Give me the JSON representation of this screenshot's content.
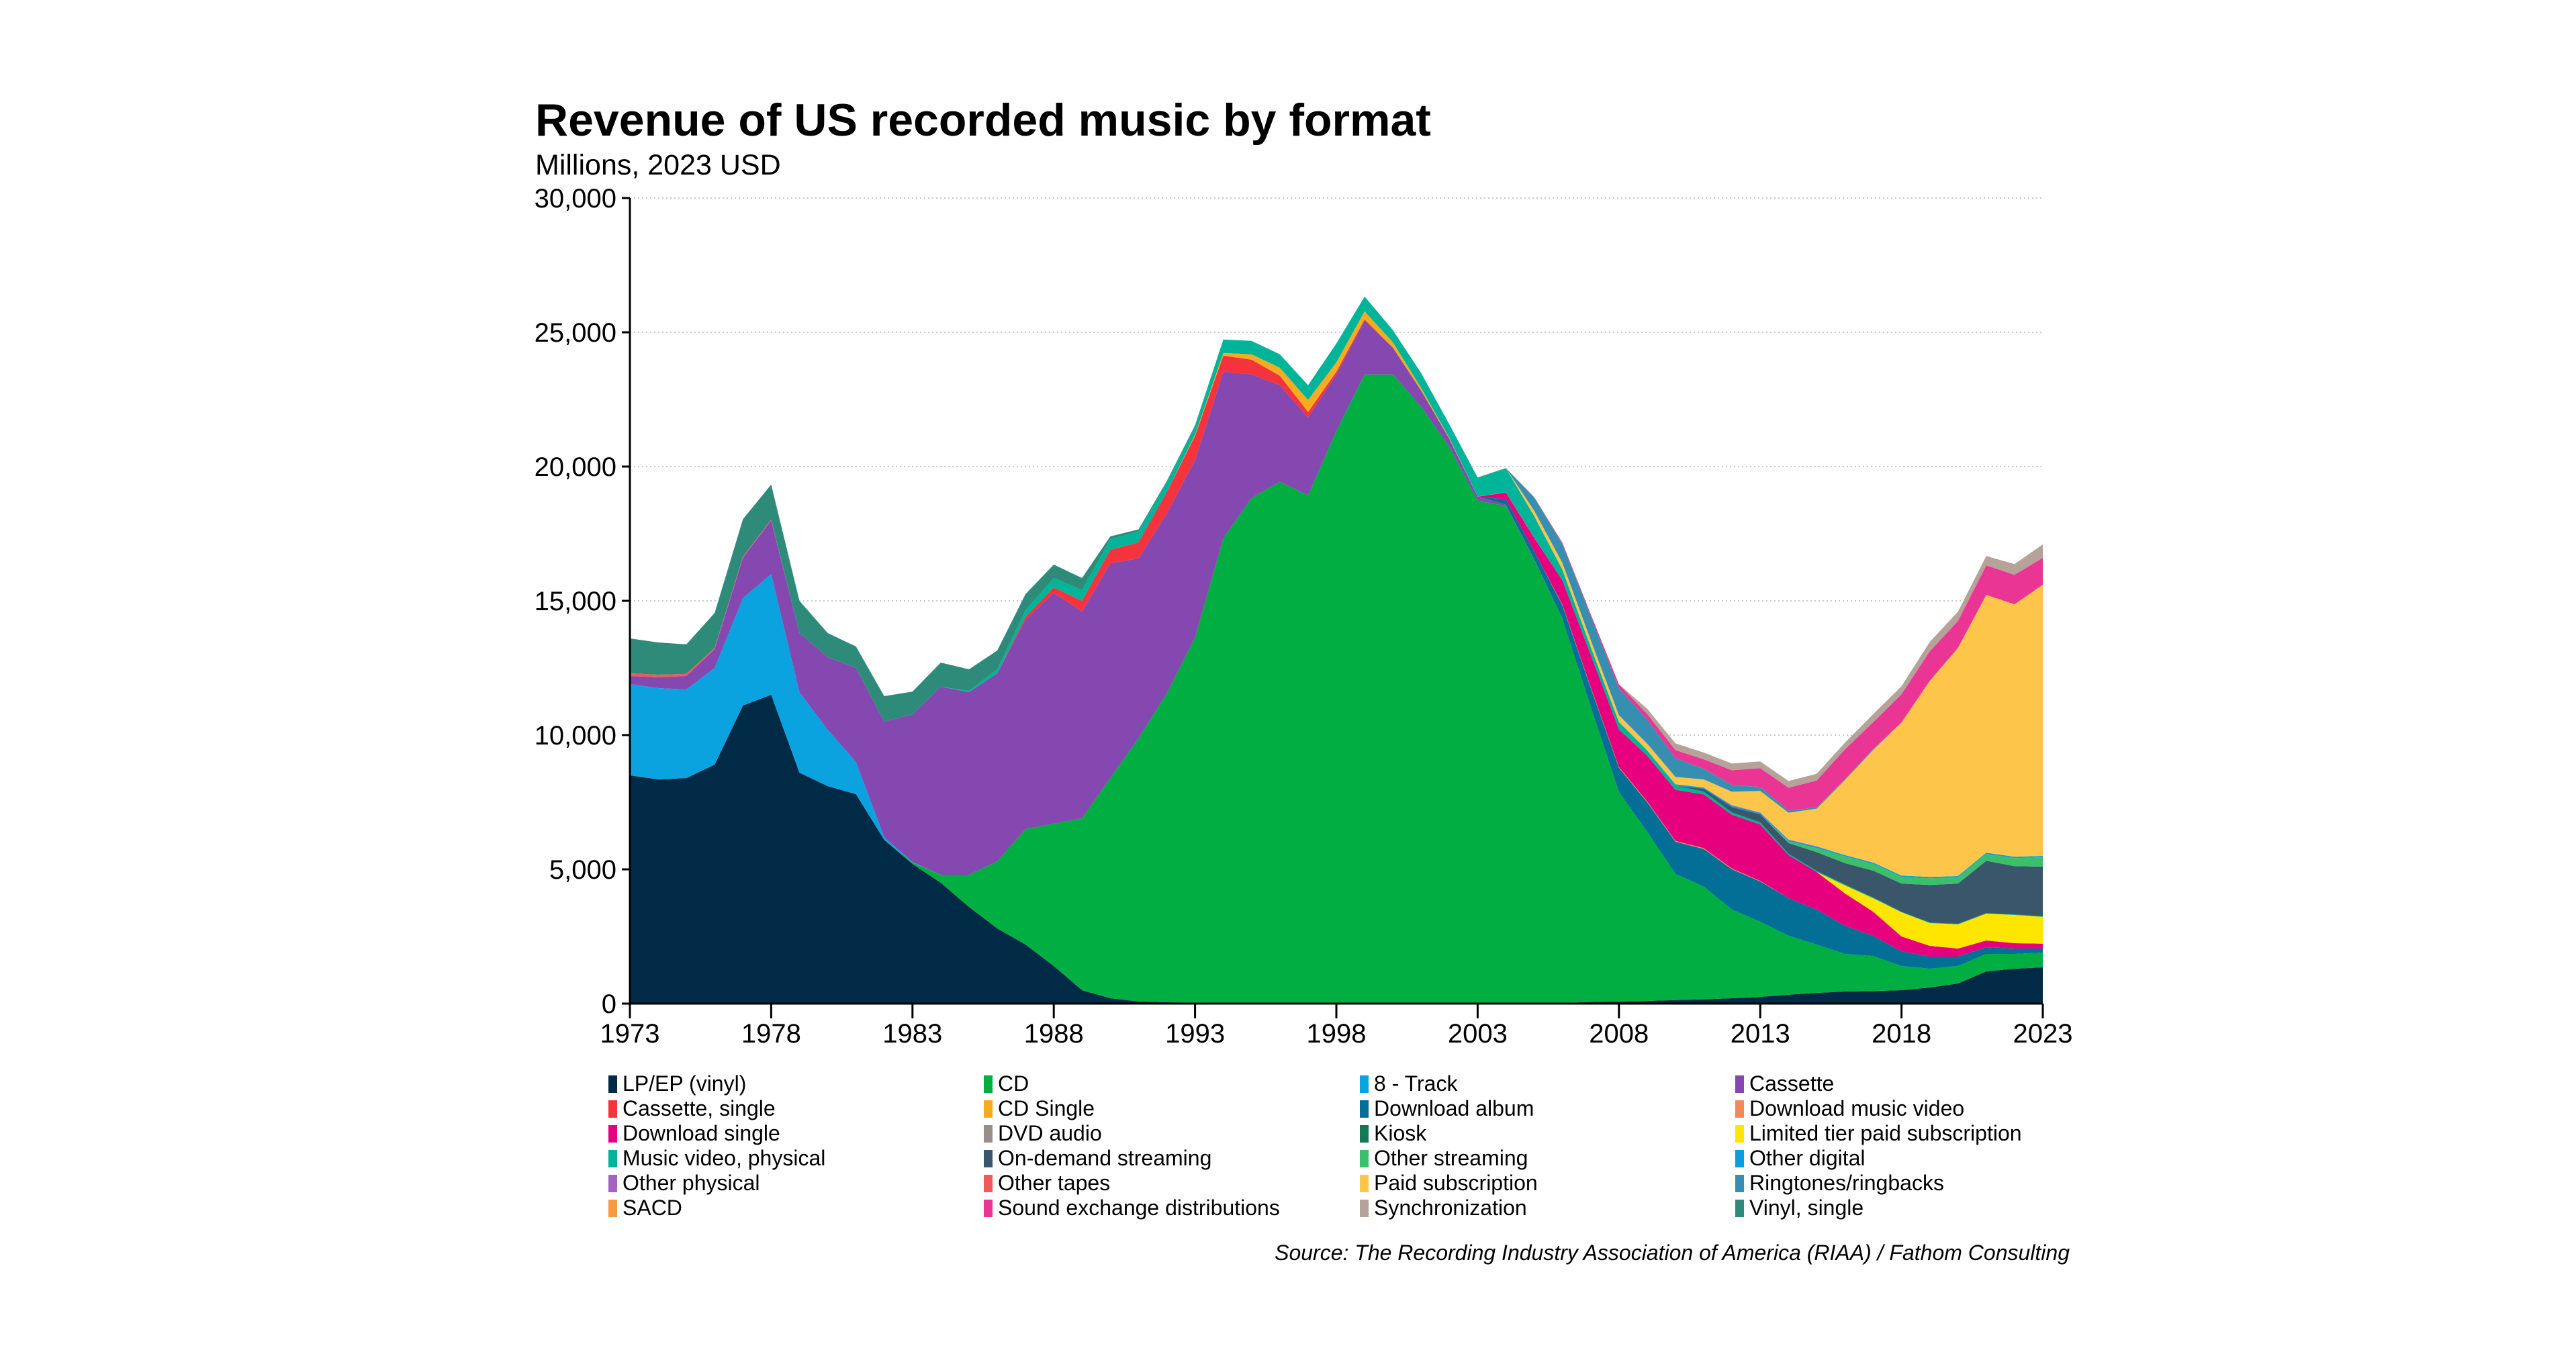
{
  "chart_data": {
    "type": "area",
    "stacked": true,
    "title": "Revenue of US recorded music by format",
    "subtitle": "Millions, 2023 USD",
    "source": "Source: The Recording Industry Association of America (RIAA) / Fathom Consulting",
    "xlim": [
      1973,
      2023
    ],
    "ylim": [
      0,
      30000
    ],
    "yticks": [
      "0",
      "5,000",
      "10,000",
      "15,000",
      "20,000",
      "25,000",
      "30,000"
    ],
    "xticks": [
      "1973",
      "1978",
      "1983",
      "1988",
      "1993",
      "1998",
      "2003",
      "2008",
      "2013",
      "2018",
      "2023"
    ],
    "grid": "horizontal dotted",
    "legend_position": "bottom",
    "series": [
      {
        "name": "LP/EP (vinyl)",
        "color": "#002a46",
        "values": {
          "1973": 8500,
          "1974": 8350,
          "1975": 8400,
          "1976": 8900,
          "1977": 11100,
          "1978": 11500,
          "1979": 8600,
          "1980": 8100,
          "1981": 7800,
          "1982": 6100,
          "1983": 5200,
          "1984": 4500,
          "1985": 3600,
          "1986": 2800,
          "1987": 2200,
          "1988": 1400,
          "1989": 500,
          "1990": 200,
          "1991": 80,
          "1992": 50,
          "1993": 40,
          "1994": 30,
          "1995": 30,
          "1996": 30,
          "1997": 30,
          "1998": 30,
          "1999": 30,
          "2000": 30,
          "2001": 30,
          "2002": 30,
          "2003": 30,
          "2004": 30,
          "2005": 30,
          "2006": 30,
          "2007": 60,
          "2008": 80,
          "2009": 100,
          "2010": 130,
          "2011": 160,
          "2012": 200,
          "2013": 250,
          "2014": 330,
          "2015": 400,
          "2016": 450,
          "2017": 470,
          "2018": 500,
          "2019": 600,
          "2020": 750,
          "2021": 1200,
          "2022": 1300,
          "2023": 1350
        }
      },
      {
        "name": "CD",
        "color": "#00ae42",
        "values": {
          "1983": 50,
          "1984": 300,
          "1985": 1200,
          "1986": 2500,
          "1987": 4300,
          "1988": 5300,
          "1989": 6400,
          "1990": 8200,
          "1991": 9800,
          "1992": 11500,
          "1993": 13600,
          "1994": 17300,
          "1995": 18800,
          "1996": 19400,
          "1997": 18900,
          "1998": 21300,
          "1999": 23400,
          "2000": 23400,
          "2001": 22200,
          "2002": 20700,
          "2003": 18700,
          "2004": 18500,
          "2005": 16500,
          "2006": 14300,
          "2007": 11000,
          "2008": 7800,
          "2009": 6300,
          "2010": 4700,
          "2011": 4200,
          "2012": 3300,
          "2013": 2800,
          "2014": 2200,
          "2015": 1800,
          "2016": 1400,
          "2017": 1300,
          "2018": 900,
          "2019": 700,
          "2020": 650,
          "2021": 650,
          "2022": 550,
          "2023": 550
        }
      },
      {
        "name": "8 - Track",
        "color": "#0aa3e0",
        "values": {
          "1973": 3400,
          "1974": 3400,
          "1975": 3300,
          "1976": 3600,
          "1977": 4000,
          "1978": 4500,
          "1979": 3000,
          "1980": 2100,
          "1981": 1200,
          "1982": 100,
          "1983": 20
        }
      },
      {
        "name": "Cassette",
        "color": "#8448b0",
        "values": {
          "1973": 300,
          "1974": 400,
          "1975": 500,
          "1976": 700,
          "1977": 1500,
          "1978": 2000,
          "1979": 2200,
          "1980": 2700,
          "1981": 3500,
          "1982": 4300,
          "1983": 5500,
          "1984": 7000,
          "1985": 6800,
          "1986": 7000,
          "1987": 7800,
          "1988": 8600,
          "1989": 7700,
          "1990": 8000,
          "1991": 6700,
          "1992": 6700,
          "1993": 6600,
          "1994": 6200,
          "1995": 4600,
          "1996": 3600,
          "1997": 2900,
          "1998": 2100,
          "1999": 2000,
          "2000": 1000,
          "2001": 600,
          "2002": 300,
          "2003": 150,
          "2004": 50,
          "2005": 20
        }
      },
      {
        "name": "Cassette, single",
        "color": "#f4333d",
        "values": {
          "1987": 100,
          "1988": 200,
          "1989": 400,
          "1990": 500,
          "1991": 600,
          "1992": 800,
          "1993": 900,
          "1994": 600,
          "1995": 550,
          "1996": 350,
          "1997": 200,
          "1998": 100,
          "1999": 50
        }
      },
      {
        "name": "CD Single",
        "color": "#f5ac1e",
        "values": {
          "1993": 50,
          "1994": 100,
          "1995": 200,
          "1996": 300,
          "1997": 450,
          "1998": 350,
          "1999": 300,
          "2000": 200,
          "2001": 100,
          "2002": 30
        }
      },
      {
        "name": "Download album",
        "color": "#036f96",
        "values": {
          "2004": 200,
          "2005": 300,
          "2006": 500,
          "2007": 700,
          "2008": 900,
          "2009": 1100,
          "2010": 1200,
          "2011": 1400,
          "2012": 1500,
          "2013": 1500,
          "2014": 1400,
          "2015": 1300,
          "2016": 1050,
          "2017": 750,
          "2018": 550,
          "2019": 450,
          "2020": 350,
          "2021": 250,
          "2022": 200,
          "2023": 150
        }
      },
      {
        "name": "Download music video",
        "color": "#f08a59",
        "values": {
          "2006": 30,
          "2007": 30,
          "2008": 30,
          "2009": 30,
          "2010": 30,
          "2011": 30,
          "2012": 30,
          "2013": 20
        }
      },
      {
        "name": "Download single",
        "color": "#e6007e",
        "values": {
          "2004": 250,
          "2005": 500,
          "2006": 900,
          "2007": 1200,
          "2008": 1400,
          "2009": 1700,
          "2010": 1900,
          "2011": 2000,
          "2012": 2000,
          "2013": 2100,
          "2014": 1600,
          "2015": 1400,
          "2016": 1200,
          "2017": 900,
          "2018": 550,
          "2019": 400,
          "2020": 300,
          "2021": 250,
          "2022": 200,
          "2023": 180
        }
      },
      {
        "name": "DVD audio",
        "color": "#9a8e8a",
        "values": {
          "2002": 10,
          "2003": 10,
          "2004": 10,
          "2005": 10
        }
      },
      {
        "name": "Kiosk",
        "color": "#137a55",
        "values": {
          "2010": 10,
          "2011": 10,
          "2012": 10,
          "2013": 10
        }
      },
      {
        "name": "Limited tier paid subscription",
        "color": "#ffe600",
        "values": {
          "2016": 300,
          "2017": 500,
          "2018": 900,
          "2019": 850,
          "2020": 900,
          "2021": 1000,
          "2022": 1050,
          "2023": 1000
        }
      },
      {
        "name": "Music video, physical",
        "color": "#00b49a",
        "values": {
          "1985": 50,
          "1986": 150,
          "1987": 250,
          "1988": 350,
          "1989": 400,
          "1990": 400,
          "1991": 400,
          "1992": 350,
          "1993": 300,
          "1994": 500,
          "1995": 500,
          "1996": 500,
          "1997": 550,
          "1998": 700,
          "1999": 550,
          "2000": 450,
          "2001": 550,
          "2002": 500,
          "2003": 700,
          "2004": 900,
          "2005": 800,
          "2006": 400,
          "2007": 300,
          "2008": 280,
          "2009": 200,
          "2010": 150,
          "2011": 100,
          "2012": 80,
          "2013": 70,
          "2014": 50,
          "2015": 40,
          "2016": 30,
          "2017": 30,
          "2018": 20,
          "2019": 20,
          "2020": 20,
          "2021": 20,
          "2022": 20,
          "2023": 20
        }
      },
      {
        "name": "On-demand streaming",
        "color": "#3a566b",
        "values": {
          "2011": 100,
          "2012": 200,
          "2013": 300,
          "2014": 400,
          "2015": 700,
          "2016": 800,
          "2017": 1000,
          "2018": 1050,
          "2019": 1400,
          "2020": 1500,
          "2021": 1950,
          "2022": 1800,
          "2023": 1850
        }
      },
      {
        "name": "Other streaming",
        "color": "#3cbf6a",
        "values": {
          "2014": 60,
          "2015": 150,
          "2016": 250,
          "2017": 250,
          "2018": 250,
          "2019": 250,
          "2020": 230,
          "2021": 250,
          "2022": 300,
          "2023": 350
        }
      },
      {
        "name": "Other digital",
        "color": "#0a9ee0",
        "values": {
          "2010": 50,
          "2011": 50,
          "2012": 50,
          "2013": 50,
          "2014": 50,
          "2015": 50,
          "2016": 50,
          "2017": 50,
          "2018": 50,
          "2019": 50,
          "2020": 50,
          "2021": 50,
          "2022": 50,
          "2023": 50
        }
      },
      {
        "name": "Other physical",
        "color": "#a264be",
        "values": {
          "2012": 20,
          "2013": 20,
          "2014": 20,
          "2015": 20
        }
      },
      {
        "name": "Other tapes",
        "color": "#ef5a5a",
        "values": {
          "1973": 100,
          "1974": 100,
          "1975": 80,
          "1976": 50,
          "1977": 40,
          "1978": 30
        }
      },
      {
        "name": "Paid subscription",
        "color": "#fdc54a",
        "values": {
          "2005": 200,
          "2006": 250,
          "2007": 250,
          "2008": 250,
          "2009": 250,
          "2010": 270,
          "2011": 300,
          "2012": 500,
          "2013": 800,
          "2014": 1000,
          "2015": 1400,
          "2016": 2800,
          "2017": 4200,
          "2018": 5700,
          "2019": 7300,
          "2020": 8500,
          "2021": 9600,
          "2022": 9400,
          "2023": 10100
        }
      },
      {
        "name": "Ringtones/ringbacks",
        "color": "#368fb0",
        "values": {
          "2005": 500,
          "2006": 700,
          "2007": 900,
          "2008": 1000,
          "2009": 900,
          "2010": 700,
          "2011": 400,
          "2012": 250,
          "2013": 150,
          "2014": 80,
          "2015": 50,
          "2016": 40,
          "2017": 30
        }
      },
      {
        "name": "SACD",
        "color": "#f59a40",
        "values": {
          "2003": 10,
          "2004": 10,
          "2005": 10
        }
      },
      {
        "name": "Sound exchange distributions",
        "color": "#ea3594",
        "values": {
          "2006": 50,
          "2007": 70,
          "2008": 150,
          "2009": 200,
          "2010": 300,
          "2011": 350,
          "2012": 550,
          "2013": 700,
          "2014": 850,
          "2015": 1000,
          "2016": 1100,
          "2017": 1000,
          "2018": 1050,
          "2019": 1100,
          "2020": 1000,
          "2021": 1100,
          "2022": 1100,
          "2023": 1000
        }
      },
      {
        "name": "Synchronization",
        "color": "#b5a299",
        "values": {
          "2009": 200,
          "2010": 250,
          "2011": 250,
          "2012": 250,
          "2013": 250,
          "2014": 250,
          "2015": 250,
          "2016": 250,
          "2017": 300,
          "2018": 300,
          "2019": 350,
          "2020": 350,
          "2021": 350,
          "2022": 400,
          "2023": 500
        }
      },
      {
        "name": "Vinyl, single",
        "color": "#2e8b7a",
        "values": {
          "1973": 1300,
          "1974": 1200,
          "1975": 1100,
          "1976": 1300,
          "1977": 1400,
          "1978": 1300,
          "1979": 1200,
          "1980": 900,
          "1981": 800,
          "1982": 950,
          "1983": 850,
          "1984": 900,
          "1985": 800,
          "1986": 700,
          "1987": 600,
          "1988": 500,
          "1989": 450,
          "1990": 100,
          "1991": 80,
          "1992": 60,
          "1993": 50
        }
      }
    ]
  }
}
